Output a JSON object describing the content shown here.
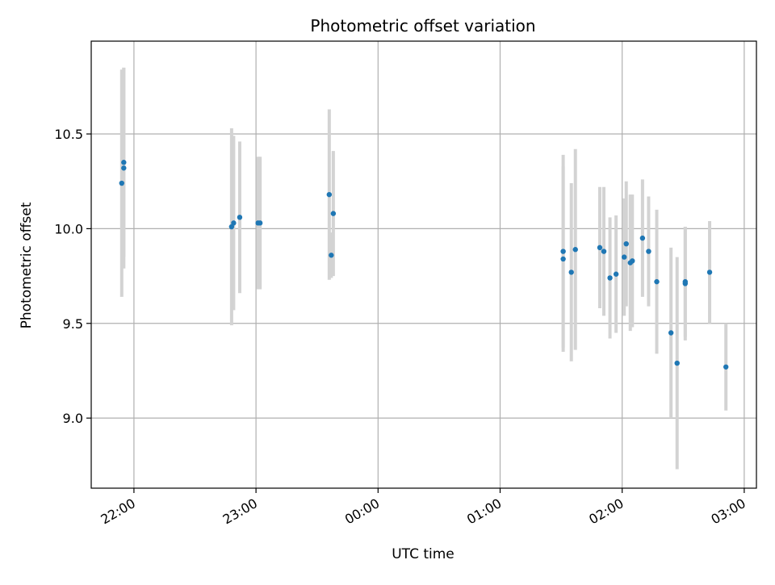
{
  "chart_data": {
    "type": "scatter",
    "title": "Photometric offset variation",
    "xlabel": "UTC time",
    "ylabel": "Photometric offset",
    "x_tick_labels": [
      "22:00",
      "23:00",
      "00:00",
      "01:00",
      "02:00",
      "03:00"
    ],
    "x_tick_times_h": [
      22,
      23,
      24,
      25,
      26,
      27
    ],
    "xlim_h": [
      21.65,
      27.1
    ],
    "y_ticks": [
      9.0,
      9.5,
      10.0,
      10.5
    ],
    "y_tick_labels": [
      "9.0",
      "9.5",
      "10.0",
      "10.5"
    ],
    "ylim": [
      8.63,
      10.99
    ],
    "grid": true,
    "colors": {
      "point": "#1f77b4",
      "errorbar": "#d3d3d3",
      "grid": "#b0b0b0"
    },
    "points": [
      {
        "t": "21:54",
        "y": 10.24,
        "err": 0.6
      },
      {
        "t": "21:55",
        "y": 10.32,
        "err": 0.53
      },
      {
        "t": "21:55",
        "y": 10.35,
        "err": 0.5
      },
      {
        "t": "22:48",
        "y": 10.01,
        "err": 0.52
      },
      {
        "t": "22:49",
        "y": 10.03,
        "err": 0.46
      },
      {
        "t": "22:52",
        "y": 10.06,
        "err": 0.4
      },
      {
        "t": "23:01",
        "y": 10.03,
        "err": 0.35
      },
      {
        "t": "23:02",
        "y": 10.03,
        "err": 0.35
      },
      {
        "t": "23:36",
        "y": 10.18,
        "err": 0.45
      },
      {
        "t": "23:37",
        "y": 9.86,
        "err": 0.12
      },
      {
        "t": "23:38",
        "y": 10.08,
        "err": 0.33
      },
      {
        "t": "01:31",
        "y": 9.88,
        "err": 0.51
      },
      {
        "t": "01:31",
        "y": 9.84,
        "err": 0.49
      },
      {
        "t": "01:35",
        "y": 9.77,
        "err": 0.47
      },
      {
        "t": "01:37",
        "y": 9.89,
        "err": 0.53
      },
      {
        "t": "01:49",
        "y": 9.9,
        "err": 0.32
      },
      {
        "t": "01:51",
        "y": 9.88,
        "err": 0.34
      },
      {
        "t": "01:54",
        "y": 9.74,
        "err": 0.32
      },
      {
        "t": "01:57",
        "y": 9.76,
        "err": 0.31
      },
      {
        "t": "02:01",
        "y": 9.85,
        "err": 0.31
      },
      {
        "t": "02:02",
        "y": 9.92,
        "err": 0.33
      },
      {
        "t": "02:04",
        "y": 9.82,
        "err": 0.36
      },
      {
        "t": "02:05",
        "y": 9.83,
        "err": 0.35
      },
      {
        "t": "02:10",
        "y": 9.95,
        "err": 0.31
      },
      {
        "t": "02:13",
        "y": 9.88,
        "err": 0.29
      },
      {
        "t": "02:17",
        "y": 9.72,
        "err": 0.38
      },
      {
        "t": "02:24",
        "y": 9.45,
        "err": 0.45
      },
      {
        "t": "02:27",
        "y": 9.29,
        "err": 0.56
      },
      {
        "t": "02:31",
        "y": 9.72,
        "err": 0.29
      },
      {
        "t": "02:31",
        "y": 9.71,
        "err": 0.3
      },
      {
        "t": "02:43",
        "y": 9.77,
        "err": 0.27
      },
      {
        "t": "02:51",
        "y": 9.27,
        "err": 0.23
      }
    ]
  }
}
